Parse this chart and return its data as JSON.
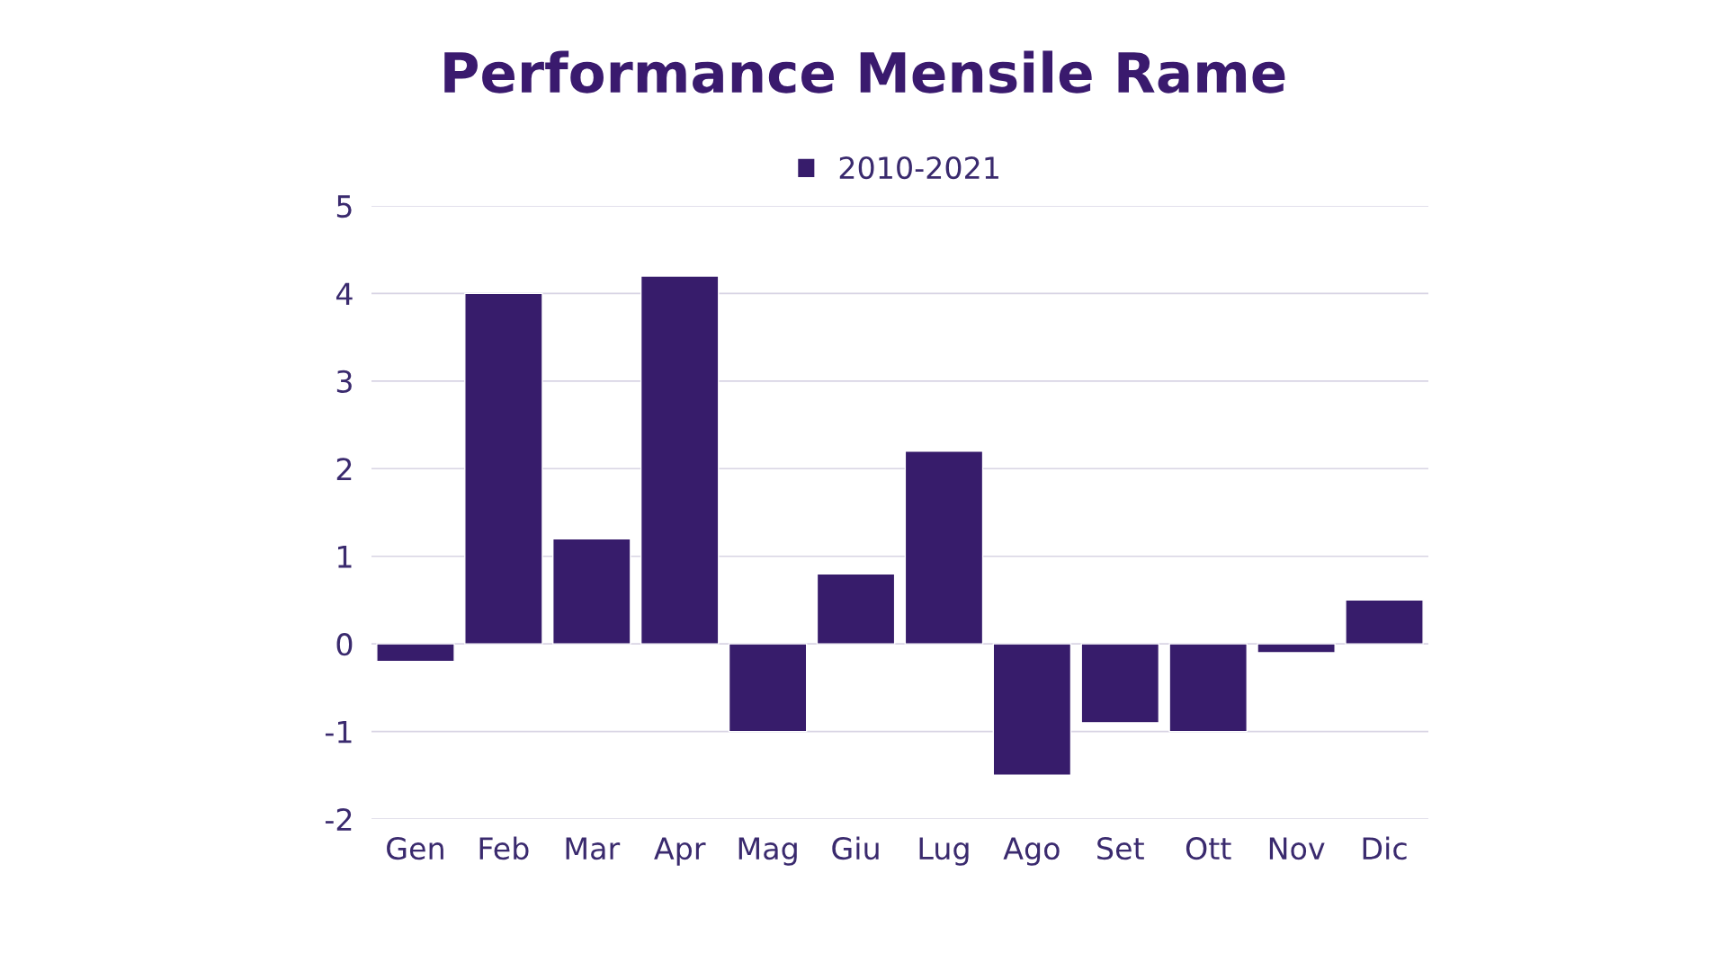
{
  "chart_data": {
    "type": "bar",
    "title": "Performance Mensile Rame",
    "categories": [
      "Gen",
      "Feb",
      "Mar",
      "Apr",
      "Mag",
      "Giu",
      "Lug",
      "Ago",
      "Set",
      "Ott",
      "Nov",
      "Dic"
    ],
    "series": [
      {
        "name": "2010-2021",
        "color": "#371c6b",
        "values": [
          -0.2,
          4.0,
          1.2,
          4.2,
          -1.0,
          0.8,
          2.2,
          -1.5,
          -0.9,
          -1.0,
          -0.1,
          0.5
        ]
      }
    ],
    "ylim": [
      -2,
      5
    ],
    "yticks": [
      -2,
      -1,
      0,
      1,
      2,
      3,
      4,
      5
    ],
    "grid": "y",
    "legend": "top"
  }
}
